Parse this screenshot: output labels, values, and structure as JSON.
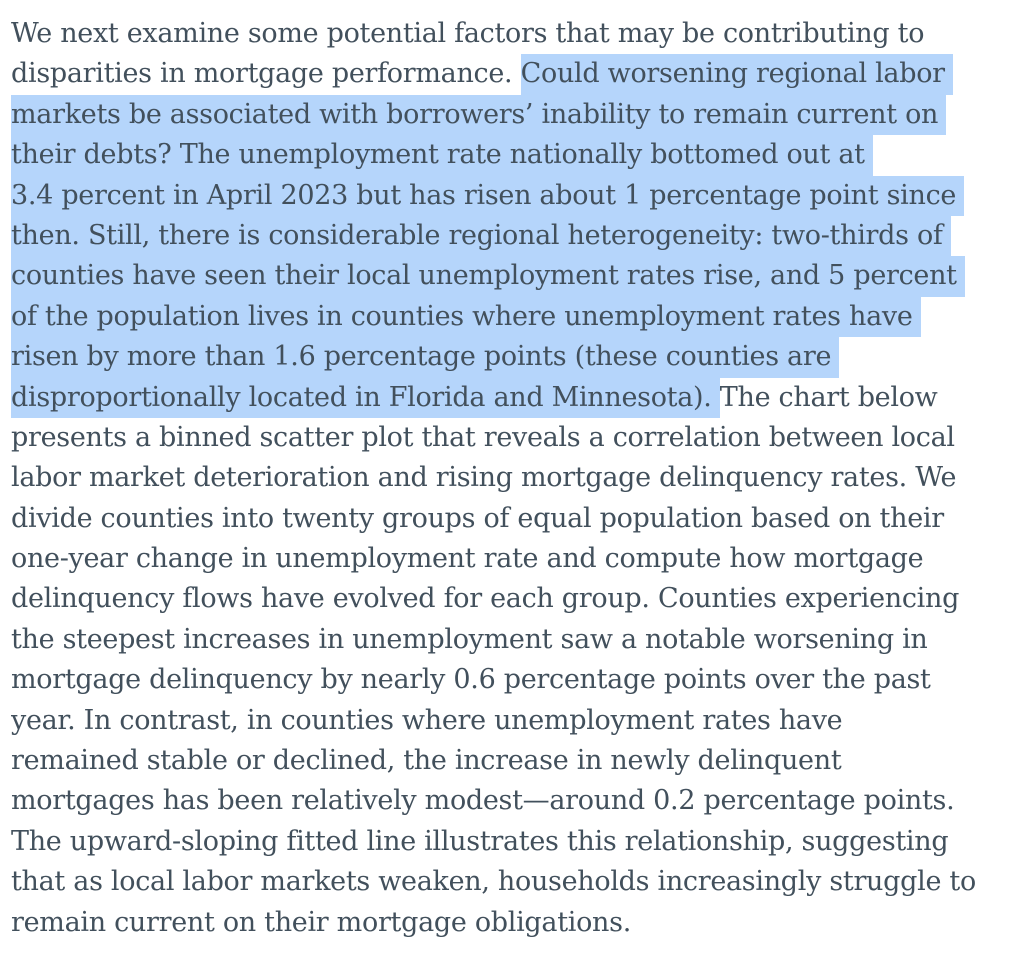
{
  "document": {
    "colors": {
      "text": "#42505c",
      "selection_highlight": "#b5d5fb",
      "background": "#ffffff"
    },
    "lines": [
      {
        "pre": "We next examine some potential factors that may be contributing to",
        "hl": "",
        "post": ""
      },
      {
        "pre": "disparities in mortgage performance. ",
        "hl": "Could worsening regional labor ",
        "post": ""
      },
      {
        "pre": "",
        "hl": "markets be associated with borrowers’ inability to remain current on ",
        "post": ""
      },
      {
        "pre": "",
        "hl": "their debts? The unemployment rate nationally bottomed out at ",
        "post": ""
      },
      {
        "pre": "",
        "hl": "3.4 percent in April 2023 but has risen about 1 percentage point since ",
        "post": ""
      },
      {
        "pre": "",
        "hl": "then. Still, there is considerable regional heterogeneity: two-thirds of ",
        "post": ""
      },
      {
        "pre": "",
        "hl": "counties have seen their local unemployment rates rise, and 5 percent ",
        "post": ""
      },
      {
        "pre": "",
        "hl": "of the population lives in counties where unemployment rates have ",
        "post": ""
      },
      {
        "pre": "",
        "hl": "risen by more than 1.6 percentage points (these counties are ",
        "post": ""
      },
      {
        "pre": "",
        "hl": "disproportionally located in Florida and Minnesota). ",
        "post": "The chart below"
      },
      {
        "pre": "presents a binned scatter plot that reveals a correlation between local",
        "hl": "",
        "post": ""
      },
      {
        "pre": "labor market deterioration and rising mortgage delinquency rates. We",
        "hl": "",
        "post": ""
      },
      {
        "pre": "divide counties into twenty groups of equal population based on their",
        "hl": "",
        "post": ""
      },
      {
        "pre": "one-year change in unemployment rate and compute how mortgage",
        "hl": "",
        "post": ""
      },
      {
        "pre": "delinquency flows have evolved for each group. Counties experiencing",
        "hl": "",
        "post": ""
      },
      {
        "pre": "the steepest increases in unemployment saw a notable worsening in",
        "hl": "",
        "post": ""
      },
      {
        "pre": "mortgage delinquency by nearly 0.6 percentage points over the past",
        "hl": "",
        "post": ""
      },
      {
        "pre": "year. In contrast, in counties where unemployment rates have",
        "hl": "",
        "post": ""
      },
      {
        "pre": "remained stable or declined, the increase in newly delinquent",
        "hl": "",
        "post": ""
      },
      {
        "pre": "mortgages has been relatively modest—around 0.2 percentage points.",
        "hl": "",
        "post": ""
      },
      {
        "pre": "The upward-sloping fitted line illustrates this relationship, suggesting",
        "hl": "",
        "post": ""
      },
      {
        "pre": "that as local labor markets weaken, households increasingly struggle to",
        "hl": "",
        "post": ""
      },
      {
        "pre": "remain current on their mortgage obligations.",
        "hl": "",
        "post": ""
      }
    ]
  }
}
